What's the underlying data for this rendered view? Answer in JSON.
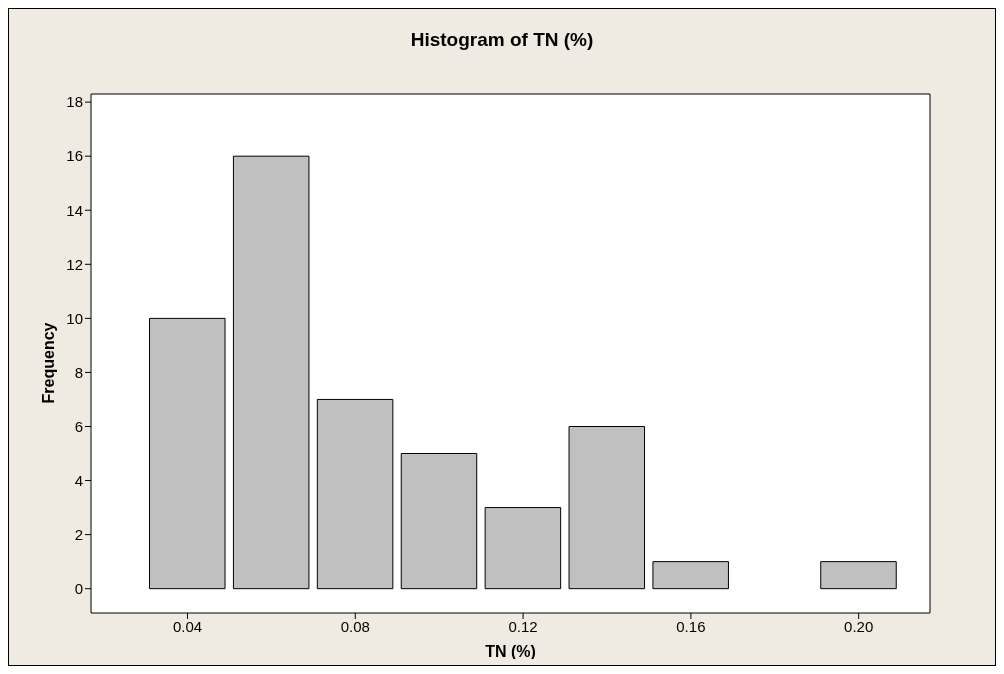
{
  "chart_data": {
    "type": "histogram",
    "title": "Histogram of TN (%)",
    "xlabel": "TN (%)",
    "ylabel": "Frequency",
    "bins": [
      0.03,
      0.05,
      0.07,
      0.09,
      0.11,
      0.13,
      0.15,
      0.17,
      0.19,
      0.21
    ],
    "values": [
      10,
      16,
      7,
      5,
      3,
      6,
      1,
      0,
      1
    ],
    "color": "#c0c0c0",
    "xlim": [
      0.017,
      0.217
    ],
    "xticks": [
      {
        "value": 0.04,
        "label": "0.04"
      },
      {
        "value": 0.08,
        "label": "0.08"
      },
      {
        "value": 0.12,
        "label": "0.12"
      },
      {
        "value": 0.16,
        "label": "0.16"
      },
      {
        "value": 0.2,
        "label": "0.20"
      }
    ],
    "ylim": [
      -0.9,
      18.3
    ],
    "yticks": [
      0,
      2,
      4,
      6,
      8,
      10,
      12,
      14,
      16,
      18
    ],
    "grid": false,
    "legend": false
  }
}
